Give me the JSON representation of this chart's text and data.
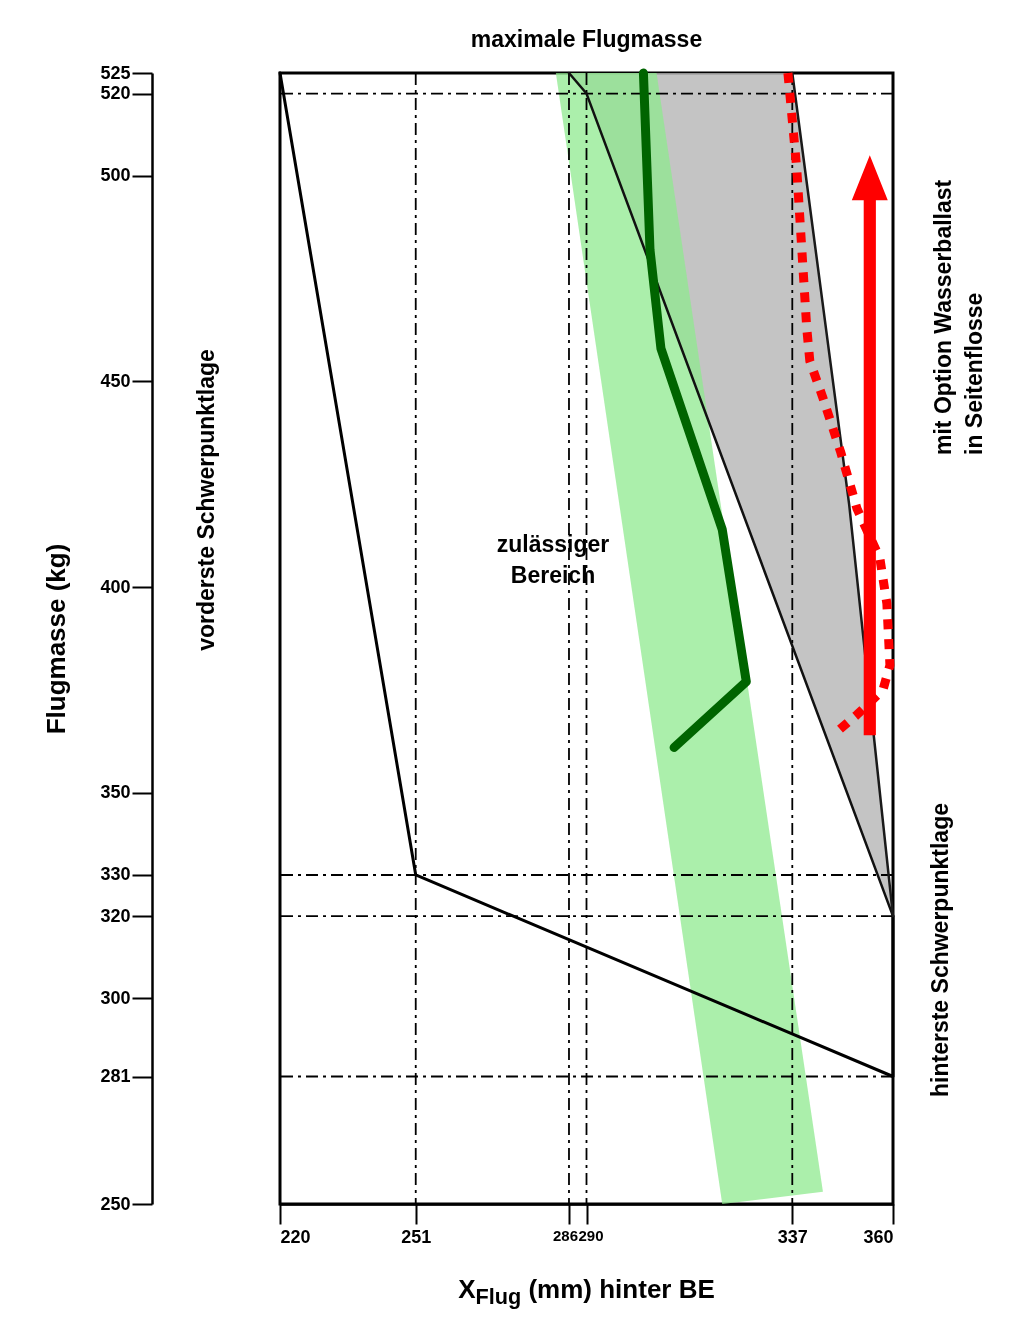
{
  "chart_data": {
    "type": "line",
    "title": "maximale Flugmasse",
    "xlabel": "X$_{Flug}$ (mm) hinter BE",
    "ylabel": "Flugmasse (kg)",
    "xlim": [
      220,
      360
    ],
    "xticks": [
      220,
      251,
      286,
      290,
      337,
      360
    ],
    "ylim": [
      250,
      525
    ],
    "yticks": [
      250,
      281,
      300,
      320,
      330,
      350,
      400,
      450,
      500,
      520,
      525
    ],
    "series": [
      {
        "type": "area",
        "color": "#8fe98f",
        "x": [
          283,
          306,
          344,
          321
        ],
        "values": [
          525,
          525,
          253,
          250
        ]
      },
      {
        "type": "line",
        "color": "#000000",
        "x": [
          220,
          251,
          360,
          360
        ],
        "values": [
          525,
          330,
          281,
          320
        ]
      },
      {
        "type": "line",
        "color": "#111111",
        "x": [
          286,
          290,
          360
        ],
        "values": [
          525,
          520,
          320
        ]
      },
      {
        "type": "line",
        "color": "#1a1a1a",
        "x": [
          337,
          350,
          360
        ],
        "values": [
          525,
          420,
          320
        ]
      },
      {
        "type": "line",
        "color": "#006400",
        "x": [
          303,
          304.5,
          307,
          321,
          326.5,
          310
        ],
        "values": [
          525,
          482,
          458,
          414,
          377,
          361
        ]
      },
      {
        "type": "line",
        "color": "#ff0000",
        "line_style": "dotted",
        "x": [
          336,
          338,
          340.3,
          341,
          344,
          348,
          351.8,
          357,
          358.6,
          359.3,
          357.7,
          351.8,
          346.3
        ],
        "values": [
          525,
          502,
          463,
          455,
          446,
          433,
          419,
          407,
          396,
          381,
          375,
          369,
          364
        ]
      }
    ],
    "ref_lines": [
      {
        "axis": "y",
        "value": 520,
        "line_style": "dashed"
      },
      {
        "axis": "y",
        "value": 330,
        "line_style": "dashed"
      },
      {
        "axis": "y",
        "value": 320,
        "line_style": "dashed"
      },
      {
        "axis": "y",
        "value": 281,
        "line_style": "dashed"
      },
      {
        "axis": "x",
        "value": 251,
        "line_style": "dashed"
      },
      {
        "axis": "x",
        "value": 286,
        "line_style": "dashed"
      },
      {
        "axis": "x",
        "value": 290,
        "line_style": "dashed"
      },
      {
        "axis": "x",
        "value": 337,
        "line_style": "dashed"
      }
    ],
    "annotations": [
      "vorderste Schwerpunktlage",
      "hinterste Schwerpunktlage",
      "mit Option Wasserballast in Seitenflosse",
      "zulässiger Bereich"
    ]
  }
}
